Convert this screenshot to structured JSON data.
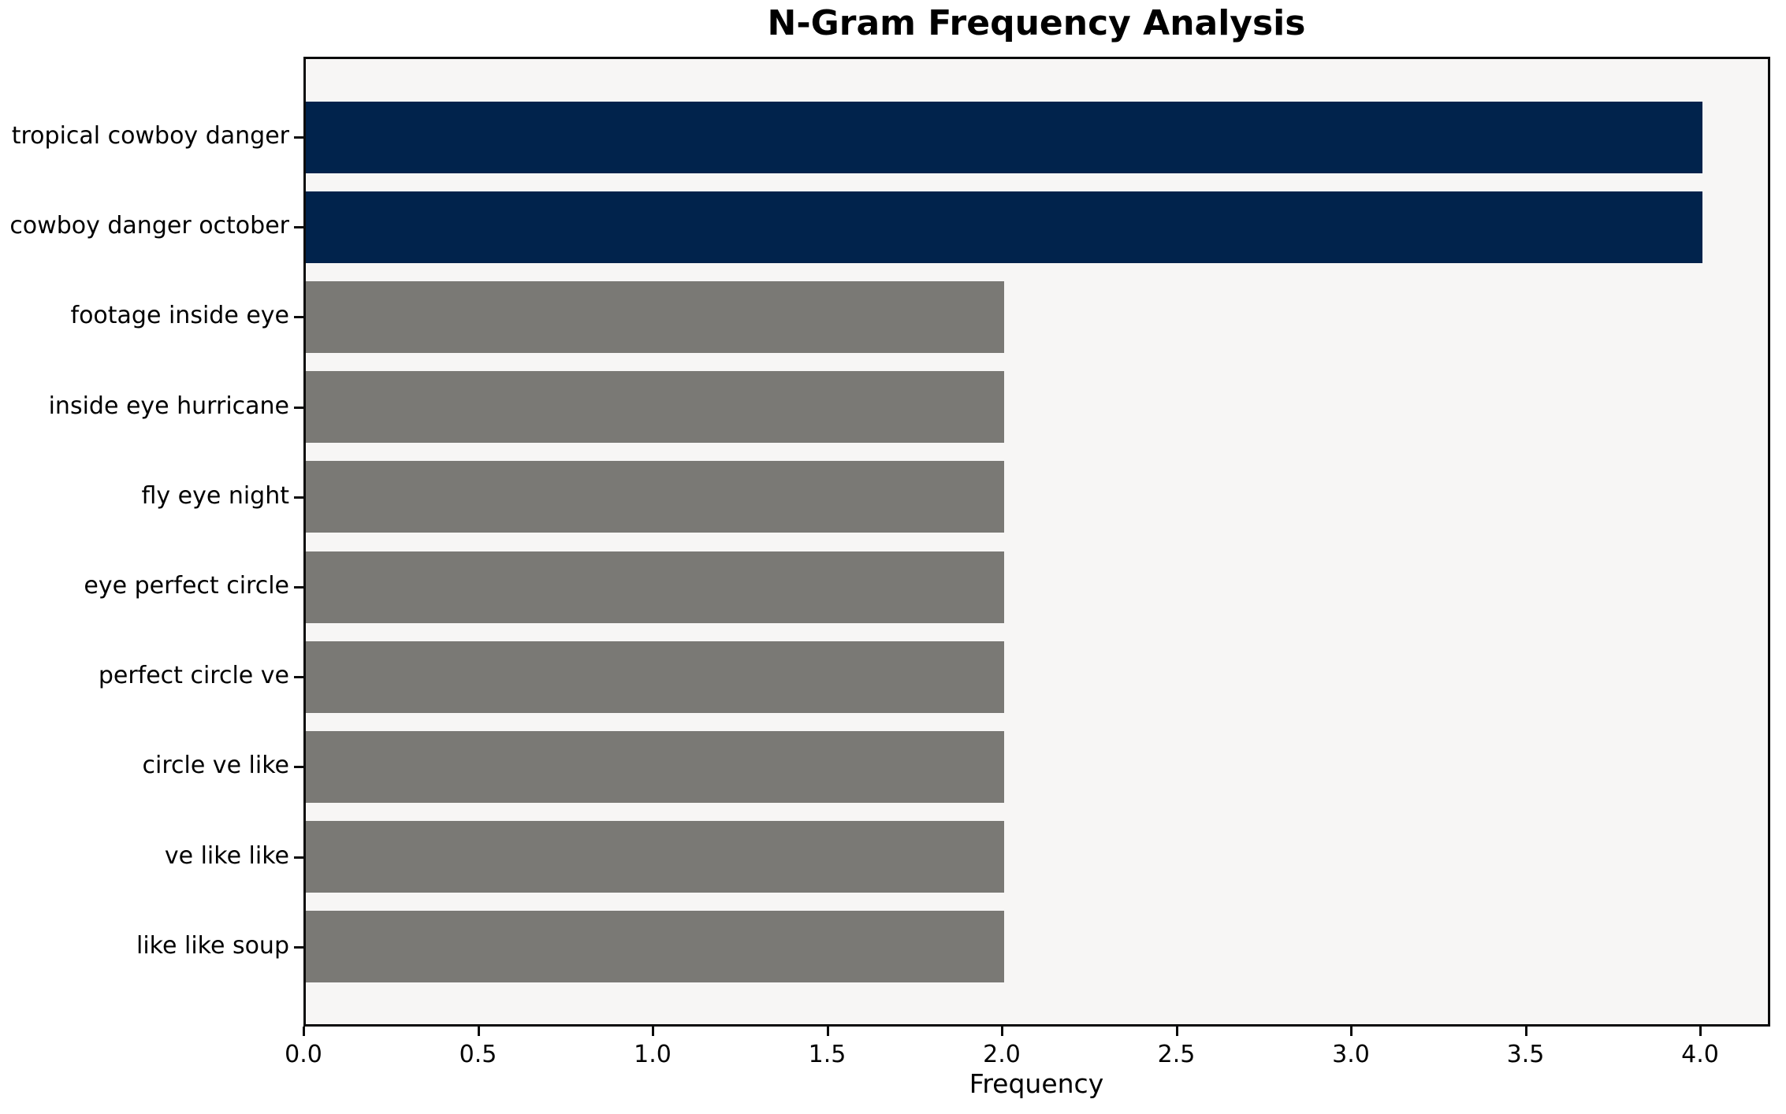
{
  "chart_data": {
    "type": "bar",
    "orientation": "horizontal",
    "title": "N-Gram Frequency Analysis",
    "xlabel": "Frequency",
    "ylabel": "",
    "categories": [
      "tropical cowboy danger",
      "cowboy danger october",
      "footage inside eye",
      "inside eye hurricane",
      "fly eye night",
      "eye perfect circle",
      "perfect circle ve",
      "circle ve like",
      "ve like like",
      "like like soup"
    ],
    "values": [
      4,
      4,
      2,
      2,
      2,
      2,
      2,
      2,
      2,
      2
    ],
    "bar_colors": [
      "#01234C",
      "#01234C",
      "#7A7975",
      "#7A7975",
      "#7A7975",
      "#7A7975",
      "#7A7975",
      "#7A7975",
      "#7A7975",
      "#7A7975"
    ],
    "x_ticks": [
      "0.0",
      "0.5",
      "1.0",
      "1.5",
      "2.0",
      "2.5",
      "3.0",
      "3.5",
      "4.0"
    ],
    "x_tick_values": [
      0,
      0.5,
      1,
      1.5,
      2,
      2.5,
      3,
      3.5,
      4
    ],
    "xlim": [
      0,
      4.2
    ],
    "grid": false,
    "legend_position": "none",
    "colors": {
      "bar_highlight": "#01234C",
      "bar_default": "#7A7975",
      "plot_background": "#F7F6F5",
      "figure_background": "#ffffff",
      "axis": "#0b0b0b",
      "text": "#000000"
    }
  }
}
